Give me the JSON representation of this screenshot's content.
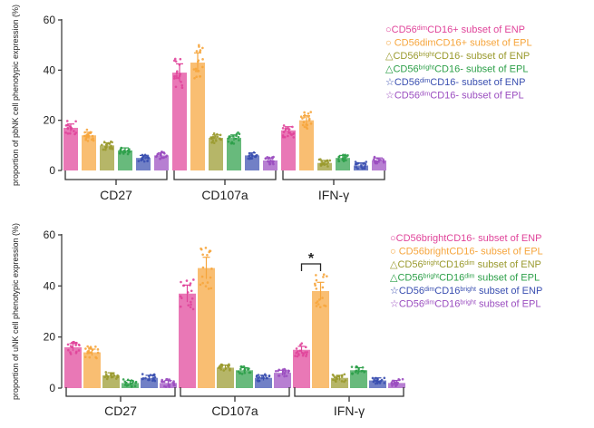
{
  "chart_data": [
    {
      "type": "bar",
      "ylabel": "proportion of pbNK cell phenotypic expression (%)",
      "ylim": [
        0,
        60
      ],
      "yticks": [
        0,
        20,
        40,
        60
      ],
      "groups": [
        "CD27",
        "CD107a",
        "IFN-γ"
      ],
      "legend_placement": "right",
      "series": [
        {
          "name": "CD56dimCD16+ subset of ENP",
          "legend_html": "○CD56<tspan baseline-shift='super' font-size='7'>dim</tspan>CD16+ subset of ENP",
          "color": "#e0449a",
          "values": [
            17,
            39,
            16
          ]
        },
        {
          "name": "CD56dimCD16+ subset of EPL",
          "legend_html": "○ CD56dimCD16+ subset of EPL",
          "color": "#f6a53c",
          "values": [
            14,
            43,
            20
          ]
        },
        {
          "name": "CD56brightCD16- subset of ENP",
          "legend_html": "△CD56<tspan baseline-shift='super' font-size='7'>bright</tspan>CD16- subset of ENP",
          "color": "#9a9a2e",
          "values": [
            10,
            13,
            3
          ]
        },
        {
          "name": "CD56brightCD16- subset of EPL",
          "legend_html": "△CD56<tspan baseline-shift='super' font-size='7'>bright</tspan>CD16- subset of EPL",
          "color": "#2ea04a",
          "values": [
            8,
            13,
            5
          ]
        },
        {
          "name": "CD56dimCD16- subset of ENP",
          "legend_html": "☆CD56<tspan baseline-shift='super' font-size='7'>dim</tspan>CD16- subset of ENP",
          "color": "#3a4fb0",
          "values": [
            5,
            6,
            2
          ]
        },
        {
          "name": "CD56dimCD16- subset of EPL",
          "legend_html": "☆CD56<tspan baseline-shift='super' font-size='7'>dim</tspan>CD16- subset of EPL",
          "color": "#9b4ec0",
          "values": [
            6,
            4,
            4
          ]
        }
      ]
    },
    {
      "type": "bar",
      "ylabel": "proportion of uNK cell phenotypic expression (%)",
      "ylim": [
        0,
        60
      ],
      "yticks": [
        0,
        20,
        40,
        60
      ],
      "groups": [
        "CD27",
        "CD107a",
        "IFN-γ"
      ],
      "legend_placement": "right",
      "annotations": [
        {
          "text": "*",
          "group": "IFN-γ",
          "between": [
            0,
            1
          ]
        }
      ],
      "series": [
        {
          "name": "CD56brightCD16- subset of ENP",
          "legend_html": "○CD56brightCD16- subset of ENP",
          "color": "#e0449a",
          "values": [
            16,
            37,
            15
          ]
        },
        {
          "name": "CD56brightCD16- subset of EPL",
          "legend_html": "○ CD56brightCD16- subset of EPL",
          "color": "#f6a53c",
          "values": [
            14,
            47,
            38
          ]
        },
        {
          "name": "CD56brightCD16dim subset of ENP",
          "legend_html": "△CD56<tspan baseline-shift='super' font-size='7'>bright</tspan>CD16<tspan baseline-shift='super' font-size='7'>dim</tspan> subset of ENP",
          "color": "#9a9a2e",
          "values": [
            5,
            8,
            4
          ]
        },
        {
          "name": "CD56brightCD16dim subset of EPL",
          "legend_html": "△CD56<tspan baseline-shift='super' font-size='7'>bright</tspan>CD16<tspan baseline-shift='super' font-size='7'>dim</tspan> subset of EPL",
          "color": "#2ea04a",
          "values": [
            2,
            7,
            7
          ]
        },
        {
          "name": "CD56dimCD16bright subset of ENP",
          "legend_html": "☆CD56<tspan baseline-shift='super' font-size='7'>dim</tspan>CD16<tspan baseline-shift='super' font-size='7'>bright</tspan> subset of ENP",
          "color": "#3a4fb0",
          "values": [
            4,
            4,
            3
          ]
        },
        {
          "name": "CD56dimCD16bright subset of EPL",
          "legend_html": "☆CD56<tspan baseline-shift='super' font-size='7'>dim</tspan>CD16<tspan baseline-shift='super' font-size='7'>bright</tspan> subset of EPL",
          "color": "#9b4ec0",
          "values": [
            2,
            6,
            2
          ]
        }
      ]
    }
  ]
}
